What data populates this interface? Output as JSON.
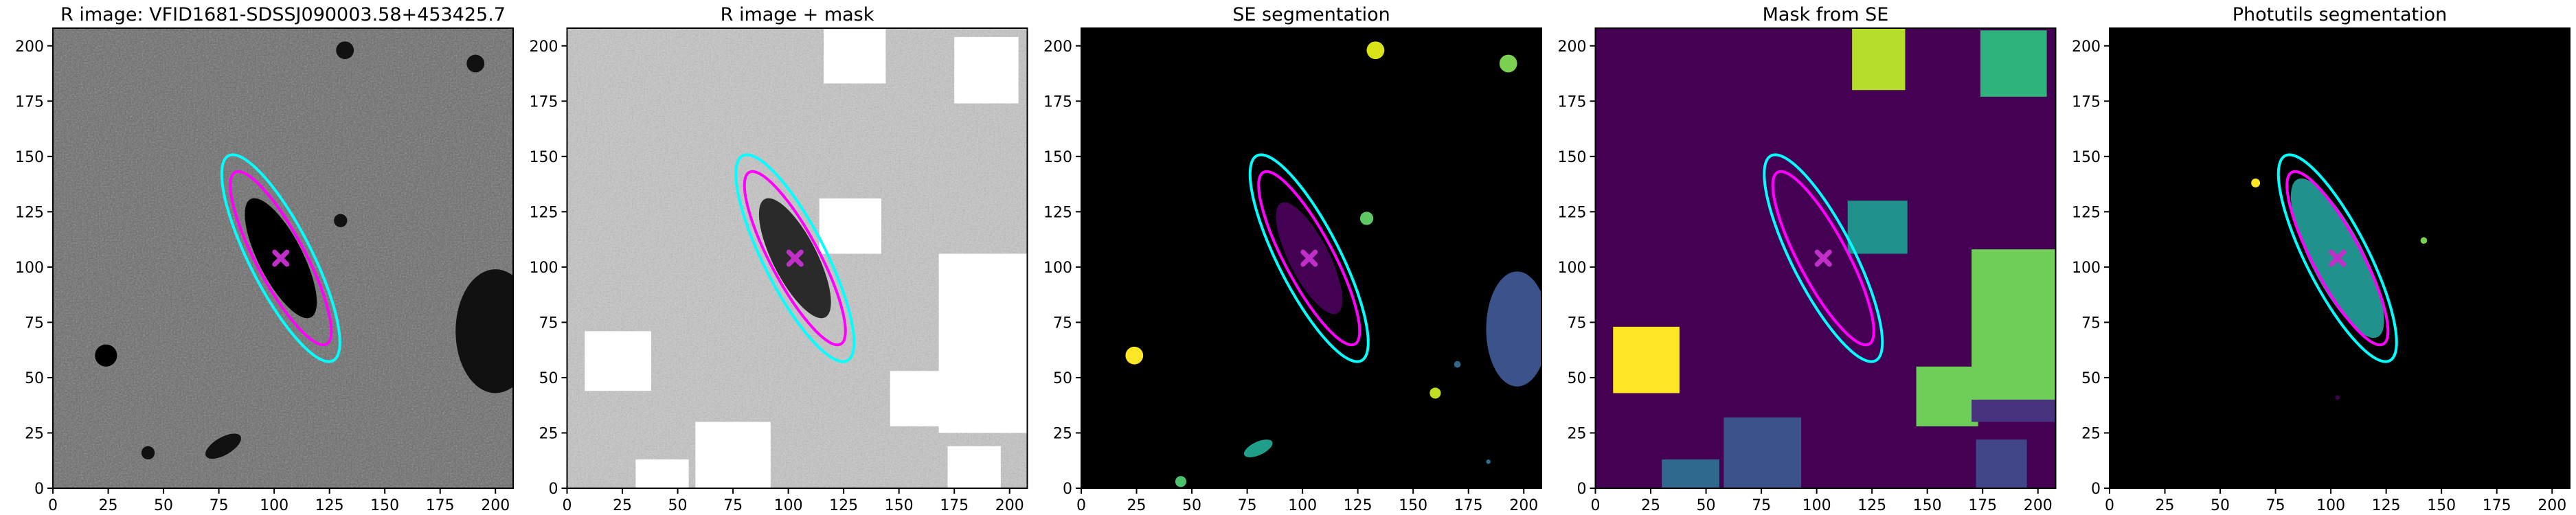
{
  "chart_data": [
    {
      "type": "image",
      "title": "R image: VFID1681-SDSSJ090003.58+453425.7",
      "xlim": [
        0,
        208
      ],
      "ylim": [
        0,
        208
      ],
      "xticks": [
        0,
        25,
        50,
        75,
        100,
        125,
        150,
        175,
        200
      ],
      "yticks": [
        0,
        25,
        50,
        75,
        100,
        125,
        150,
        175,
        200
      ],
      "background": "#6a6a6a",
      "noise": true,
      "blobs": [
        {
          "cx": 103,
          "cy": 104,
          "rx": 30,
          "ry": 10,
          "angle": 117,
          "color": "#000000"
        },
        {
          "cx": 132,
          "cy": 198,
          "rx": 4,
          "ry": 4,
          "angle": 0,
          "color": "#111111"
        },
        {
          "cx": 191,
          "cy": 192,
          "rx": 4,
          "ry": 4,
          "angle": 0,
          "color": "#111111"
        },
        {
          "cx": 130,
          "cy": 121,
          "rx": 3,
          "ry": 3,
          "angle": 0,
          "color": "#111111"
        },
        {
          "cx": 24,
          "cy": 60,
          "rx": 5,
          "ry": 5,
          "angle": 0,
          "color": "#000000"
        },
        {
          "cx": 43,
          "cy": 16,
          "rx": 3,
          "ry": 3,
          "angle": 0,
          "color": "#111111"
        },
        {
          "cx": 77,
          "cy": 19,
          "rx": 9,
          "ry": 4,
          "angle": 30,
          "color": "#111111"
        },
        {
          "cx": 200,
          "cy": 71,
          "rx": 18,
          "ry": 28,
          "angle": 0,
          "color": "#111111"
        }
      ],
      "rects": [],
      "ellipses": [
        {
          "cx": 103,
          "cy": 104,
          "a": 52,
          "b": 14,
          "angle": 117,
          "color": "#00ffff"
        },
        {
          "cx": 103,
          "cy": 104,
          "a": 44,
          "b": 11,
          "angle": 118,
          "color": "#ff00ff"
        }
      ],
      "center": {
        "x": 103,
        "y": 104,
        "color": "#c030c8"
      }
    },
    {
      "type": "image",
      "title": "R image + mask",
      "xlim": [
        0,
        208
      ],
      "ylim": [
        0,
        208
      ],
      "xticks": [
        0,
        25,
        50,
        75,
        100,
        125,
        150,
        175,
        200
      ],
      "yticks": [
        0,
        25,
        50,
        75,
        100,
        125,
        150,
        175,
        200
      ],
      "background": "#c4c4c4",
      "noise": true,
      "blobs": [
        {
          "cx": 103,
          "cy": 104,
          "rx": 30,
          "ry": 10,
          "angle": 117,
          "color": "#2a2a2a"
        }
      ],
      "rects": [
        {
          "x": 116,
          "y": 183,
          "w": 28,
          "h": 25,
          "color": "#ffffff"
        },
        {
          "x": 175,
          "y": 174,
          "w": 29,
          "h": 30,
          "color": "#ffffff"
        },
        {
          "x": 114,
          "y": 106,
          "w": 28,
          "h": 25,
          "color": "#ffffff"
        },
        {
          "x": 8,
          "y": 44,
          "w": 30,
          "h": 27,
          "color": "#ffffff"
        },
        {
          "x": 58,
          "y": 0,
          "w": 34,
          "h": 30,
          "color": "#ffffff"
        },
        {
          "x": 31,
          "y": 0,
          "w": 24,
          "h": 13,
          "color": "#ffffff"
        },
        {
          "x": 168,
          "y": 25,
          "w": 40,
          "h": 81,
          "color": "#ffffff"
        },
        {
          "x": 146,
          "y": 28,
          "w": 24,
          "h": 25,
          "color": "#ffffff"
        },
        {
          "x": 172,
          "y": 0,
          "w": 24,
          "h": 19,
          "color": "#ffffff"
        }
      ],
      "ellipses": [
        {
          "cx": 103,
          "cy": 104,
          "a": 52,
          "b": 14,
          "angle": 117,
          "color": "#00ffff"
        },
        {
          "cx": 103,
          "cy": 104,
          "a": 44,
          "b": 11,
          "angle": 118,
          "color": "#ff00ff"
        }
      ],
      "center": {
        "x": 103,
        "y": 104,
        "color": "#c030c8"
      }
    },
    {
      "type": "image",
      "title": "SE segmentation",
      "xlim": [
        0,
        208
      ],
      "ylim": [
        0,
        208
      ],
      "xticks": [
        0,
        25,
        50,
        75,
        100,
        125,
        150,
        175,
        200
      ],
      "yticks": [
        0,
        25,
        50,
        75,
        100,
        125,
        150,
        175,
        200
      ],
      "background": "#000000",
      "noise": false,
      "blobs": [
        {
          "cx": 103,
          "cy": 104,
          "rx": 28,
          "ry": 9,
          "angle": 117,
          "color": "#440154"
        },
        {
          "cx": 24,
          "cy": 60,
          "rx": 4,
          "ry": 4,
          "angle": 0,
          "color": "#fde725"
        },
        {
          "cx": 133,
          "cy": 198,
          "rx": 4,
          "ry": 4,
          "angle": 0,
          "color": "#d8e219"
        },
        {
          "cx": 193,
          "cy": 192,
          "rx": 4,
          "ry": 4,
          "angle": 0,
          "color": "#7ad151"
        },
        {
          "cx": 129,
          "cy": 122,
          "rx": 3,
          "ry": 3,
          "angle": 0,
          "color": "#5ec962"
        },
        {
          "cx": 160,
          "cy": 43,
          "rx": 2.5,
          "ry": 2.5,
          "angle": 0,
          "color": "#c2df23"
        },
        {
          "cx": 80,
          "cy": 18,
          "rx": 7,
          "ry": 3,
          "angle": 25,
          "color": "#1f9e89"
        },
        {
          "cx": 45,
          "cy": 3,
          "rx": 2.5,
          "ry": 2.5,
          "angle": 0,
          "color": "#4ac16d"
        },
        {
          "cx": 197,
          "cy": 72,
          "rx": 14,
          "ry": 26,
          "angle": 0,
          "color": "#3b528b"
        },
        {
          "cx": 184,
          "cy": 12,
          "rx": 1,
          "ry": 1,
          "angle": 0,
          "color": "#2c728e"
        },
        {
          "cx": 170,
          "cy": 56,
          "rx": 1.5,
          "ry": 1.5,
          "angle": 0,
          "color": "#31688e"
        }
      ],
      "rects": [],
      "ellipses": [
        {
          "cx": 103,
          "cy": 104,
          "a": 52,
          "b": 14,
          "angle": 117,
          "color": "#00ffff"
        },
        {
          "cx": 103,
          "cy": 104,
          "a": 44,
          "b": 11,
          "angle": 118,
          "color": "#ff00ff"
        }
      ],
      "center": {
        "x": 103,
        "y": 104,
        "color": "#c030c8"
      }
    },
    {
      "type": "image",
      "title": "Mask from SE",
      "xlim": [
        0,
        208
      ],
      "ylim": [
        0,
        208
      ],
      "xticks": [
        0,
        25,
        50,
        75,
        100,
        125,
        150,
        175,
        200
      ],
      "yticks": [
        0,
        25,
        50,
        75,
        100,
        125,
        150,
        175,
        200
      ],
      "background": "#440154",
      "noise": false,
      "blobs": [],
      "rects": [
        {
          "x": 116,
          "y": 180,
          "w": 24,
          "h": 28,
          "color": "#b5de2b"
        },
        {
          "x": 174,
          "y": 177,
          "w": 30,
          "h": 30,
          "color": "#2eb37c"
        },
        {
          "x": 114,
          "y": 106,
          "w": 27,
          "h": 24,
          "color": "#21918c"
        },
        {
          "x": 8,
          "y": 43,
          "w": 30,
          "h": 30,
          "color": "#fde725"
        },
        {
          "x": 170,
          "y": 40,
          "w": 38,
          "h": 68,
          "color": "#6ece58"
        },
        {
          "x": 145,
          "y": 28,
          "w": 28,
          "h": 27,
          "color": "#6ece58"
        },
        {
          "x": 58,
          "y": 0,
          "w": 35,
          "h": 32,
          "color": "#3b528b"
        },
        {
          "x": 30,
          "y": 0,
          "w": 26,
          "h": 13,
          "color": "#31688e"
        },
        {
          "x": 170,
          "y": 30,
          "w": 38,
          "h": 10,
          "color": "#46327e"
        },
        {
          "x": 172,
          "y": 0,
          "w": 23,
          "h": 22,
          "color": "#404688"
        }
      ],
      "ellipses": [
        {
          "cx": 103,
          "cy": 104,
          "a": 52,
          "b": 14,
          "angle": 117,
          "color": "#00ffff"
        },
        {
          "cx": 103,
          "cy": 104,
          "a": 44,
          "b": 11,
          "angle": 118,
          "color": "#ff00ff"
        }
      ],
      "center": {
        "x": 103,
        "y": 104,
        "color": "#c030c8"
      }
    },
    {
      "type": "image",
      "title": "Photutils segmentation",
      "xlim": [
        0,
        208
      ],
      "ylim": [
        0,
        208
      ],
      "xticks": [
        0,
        25,
        50,
        75,
        100,
        125,
        150,
        175,
        200
      ],
      "yticks": [
        0,
        25,
        50,
        75,
        100,
        125,
        150,
        175,
        200
      ],
      "background": "#000000",
      "noise": false,
      "blobs": [
        {
          "cx": 103,
          "cy": 104,
          "rx": 40,
          "ry": 12,
          "angle": 117,
          "color": "#21918c"
        },
        {
          "cx": 66,
          "cy": 138,
          "rx": 2,
          "ry": 2,
          "angle": 0,
          "color": "#fde725"
        },
        {
          "cx": 142,
          "cy": 112,
          "rx": 1.5,
          "ry": 1.5,
          "angle": 0,
          "color": "#7ad151"
        },
        {
          "cx": 103,
          "cy": 41,
          "rx": 1,
          "ry": 1,
          "angle": 0,
          "color": "#440154"
        }
      ],
      "rects": [],
      "ellipses": [
        {
          "cx": 103,
          "cy": 104,
          "a": 52,
          "b": 14,
          "angle": 117,
          "color": "#00ffff"
        },
        {
          "cx": 103,
          "cy": 104,
          "a": 44,
          "b": 11,
          "angle": 118,
          "color": "#ff00ff"
        }
      ],
      "center": {
        "x": 103,
        "y": 104,
        "color": "#c030c8"
      }
    }
  ]
}
